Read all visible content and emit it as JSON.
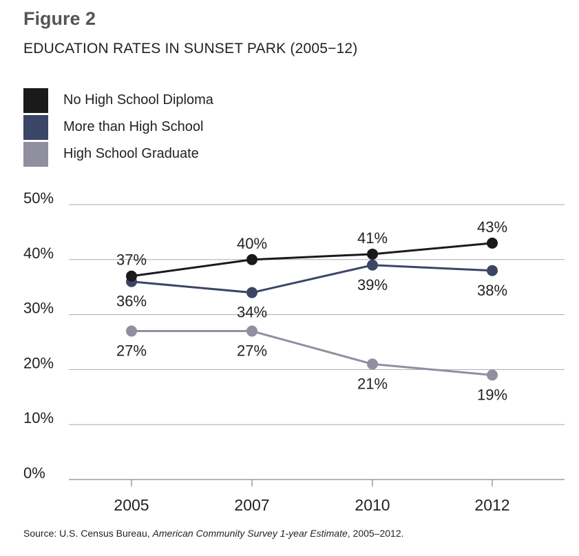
{
  "figure_label": "Figure 2",
  "chart_data": {
    "type": "line",
    "title": "EDUCATION RATES IN SUNSET PARK (2005−12)",
    "categories": [
      "2005",
      "2007",
      "2010",
      "2012"
    ],
    "y_ticks": [
      "0%",
      "10%",
      "20%",
      "30%",
      "40%",
      "50%"
    ],
    "ylim": [
      0,
      50
    ],
    "grid": true,
    "legend_position": "top-left",
    "series": [
      {
        "name": "No High School Diploma",
        "color": "#1a1a1a",
        "values": [
          37,
          40,
          41,
          43
        ],
        "labels": [
          "37%",
          "40%",
          "41%",
          "43%"
        ],
        "label_side": [
          "above",
          "above",
          "above",
          "above"
        ]
      },
      {
        "name": "More than High School",
        "color": "#3b4566",
        "values": [
          36,
          34,
          39,
          38
        ],
        "labels": [
          "36%",
          "34%",
          "39%",
          "38%"
        ],
        "label_side": [
          "below",
          "below",
          "below",
          "below"
        ]
      },
      {
        "name": "High School Graduate",
        "color": "#8f8fa0",
        "values": [
          27,
          27,
          21,
          19
        ],
        "labels": [
          "27%",
          "27%",
          "21%",
          "19%"
        ],
        "label_side": [
          "below",
          "below",
          "below",
          "below"
        ]
      }
    ]
  },
  "source": {
    "prefix": "Source: U.S. Census Bureau, ",
    "italic": "American Community Survey 1-year Estimate",
    "suffix": ", 2005–2012."
  }
}
